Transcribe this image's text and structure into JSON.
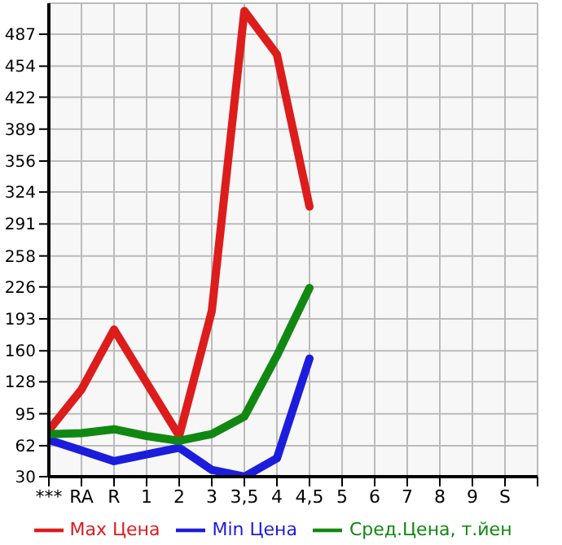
{
  "chart_data": {
    "type": "line",
    "categories": [
      "***",
      "RA",
      "R",
      "1",
      "2",
      "3",
      "3,5",
      "4",
      "4,5",
      "5",
      "6",
      "7",
      "8",
      "9",
      "S"
    ],
    "series": [
      {
        "name": "Max Цена",
        "color": "#dd1c1c",
        "values": [
          78,
          120,
          182,
          127,
          72,
          201,
          511,
          466,
          309,
          null,
          null,
          null,
          null,
          null,
          null
        ]
      },
      {
        "name": "Min Цена",
        "color": "#1c1cdd",
        "values": [
          68,
          57,
          46,
          53,
          60,
          37,
          30,
          49,
          152,
          null,
          null,
          null,
          null,
          null,
          null
        ]
      },
      {
        "name": "Сред.Цена, т.йен",
        "color": "#118811",
        "values": [
          74,
          75,
          79,
          72,
          67,
          74,
          92,
          155,
          225,
          null,
          null,
          null,
          null,
          null,
          null
        ]
      }
    ],
    "ylim": [
      30,
      519
    ],
    "yticks": [
      30,
      62,
      95,
      128,
      160,
      193,
      226,
      258,
      291,
      324,
      356,
      389,
      422,
      454,
      487
    ],
    "grid": true,
    "legend": "bottom",
    "marker": "none",
    "line_style": "solid"
  }
}
